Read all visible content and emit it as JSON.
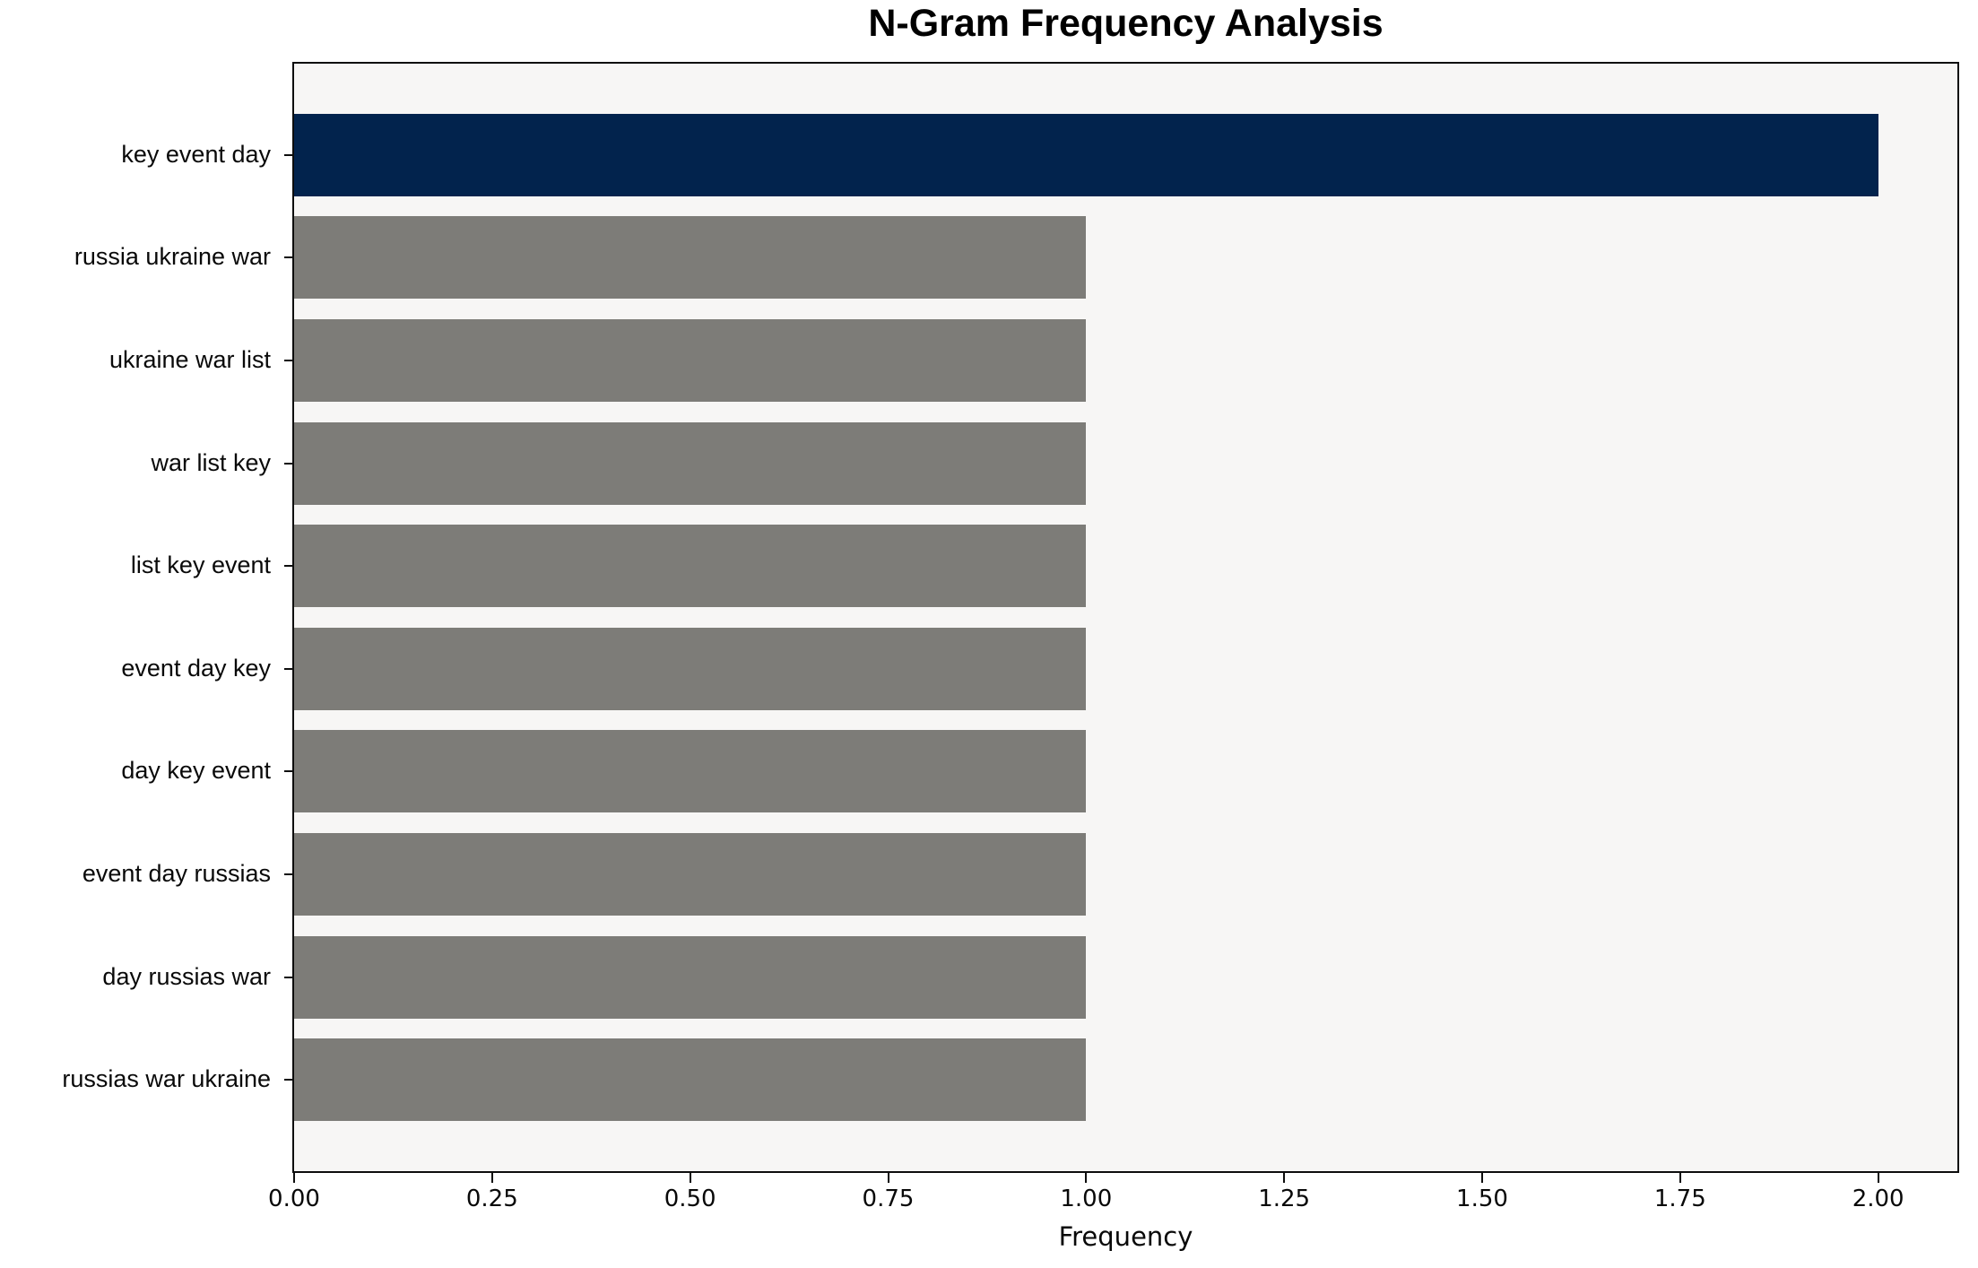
{
  "figure": {
    "background": "#ffffff"
  },
  "chart_data": {
    "type": "bar",
    "orientation": "horizontal",
    "title": "N-Gram Frequency Analysis",
    "xlabel": "Frequency",
    "ylabel": "",
    "categories": [
      "key event day",
      "russia ukraine war",
      "ukraine war list",
      "war list key",
      "list key event",
      "event day key",
      "day key event",
      "event day russias",
      "day russias war",
      "russias war ukraine"
    ],
    "values": [
      2,
      1,
      1,
      1,
      1,
      1,
      1,
      1,
      1,
      1
    ],
    "bar_colors": [
      "#02234d",
      "#7d7c78",
      "#7d7c78",
      "#7d7c78",
      "#7d7c78",
      "#7d7c78",
      "#7d7c78",
      "#7d7c78",
      "#7d7c78",
      "#7d7c78"
    ],
    "highlight_color": "#02234d",
    "default_bar_color": "#7d7c78",
    "plot_background": "#f7f6f5",
    "x_tick_labels": [
      "0.00",
      "0.25",
      "0.50",
      "0.75",
      "1.00",
      "1.25",
      "1.50",
      "1.75",
      "2.00"
    ],
    "xlim": [
      0,
      2.1
    ],
    "grid": false,
    "legend": false
  }
}
